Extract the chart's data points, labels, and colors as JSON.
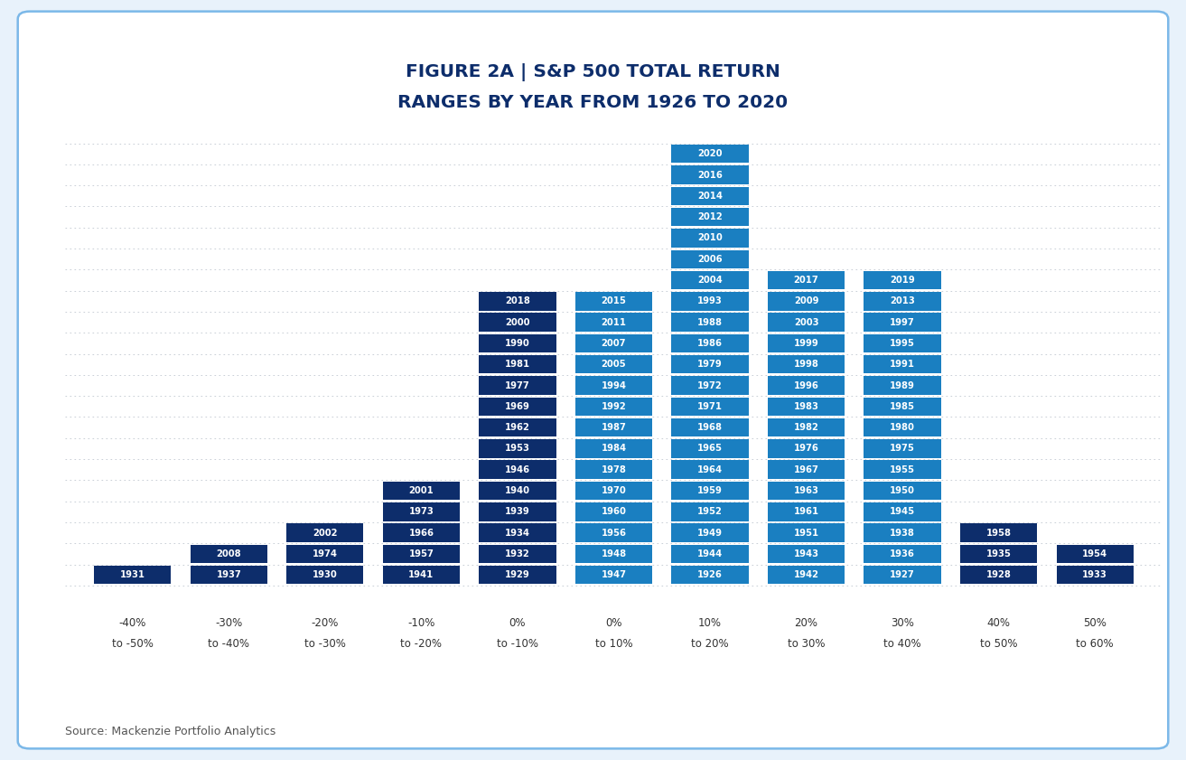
{
  "title_line1": "FIGURE 2A | S&P 500 TOTAL RETURN",
  "title_line2": "RANGES BY YEAR FROM 1926 TO 2020",
  "source": "Source: Mackenzie Portfolio Analytics",
  "columns": [
    {
      "label": "-40%\nto -50%",
      "years": [
        "1931"
      ]
    },
    {
      "label": "-30%\nto -40%",
      "years": [
        "2008",
        "1937"
      ]
    },
    {
      "label": "-20%\nto -30%",
      "years": [
        "2002",
        "1974",
        "1930"
      ]
    },
    {
      "label": "-10%\nto -20%",
      "years": [
        "2001",
        "1973",
        "1966",
        "1957",
        "1941"
      ]
    },
    {
      "label": "0%\nto -10%",
      "years": [
        "2018",
        "2000",
        "1990",
        "1981",
        "1977",
        "1969",
        "1962",
        "1953",
        "1946",
        "1940",
        "1939",
        "1934",
        "1932",
        "1929"
      ]
    },
    {
      "label": "0%\nto 10%",
      "years": [
        "2015",
        "2011",
        "2007",
        "2005",
        "1994",
        "1992",
        "1987",
        "1984",
        "1978",
        "1970",
        "1960",
        "1956",
        "1948",
        "1947"
      ]
    },
    {
      "label": "10%\nto 20%",
      "years": [
        "2020",
        "2016",
        "2014",
        "2012",
        "2010",
        "2006",
        "2004",
        "1993",
        "1988",
        "1986",
        "1979",
        "1972",
        "1971",
        "1968",
        "1965",
        "1964",
        "1959",
        "1952",
        "1949",
        "1944",
        "1926"
      ]
    },
    {
      "label": "20%\nto 30%",
      "years": [
        "2017",
        "2009",
        "2003",
        "1999",
        "1998",
        "1996",
        "1983",
        "1982",
        "1976",
        "1967",
        "1963",
        "1961",
        "1951",
        "1943",
        "1942"
      ]
    },
    {
      "label": "30%\nto 40%",
      "years": [
        "2019",
        "2013",
        "1997",
        "1995",
        "1991",
        "1989",
        "1985",
        "1980",
        "1975",
        "1955",
        "1950",
        "1945",
        "1938",
        "1936",
        "1927"
      ]
    },
    {
      "label": "40%\nto 50%",
      "years": [
        "1958",
        "1935",
        "1928"
      ]
    },
    {
      "label": "50%\nto 60%",
      "years": [
        "1954",
        "1933"
      ]
    }
  ],
  "col_colors": [
    "#0d2d6b",
    "#0d2d6b",
    "#0d2d6b",
    "#0d2d6b",
    "#0d2d6b",
    "#1a7fc1",
    "#1a7fc1",
    "#1a7fc1",
    "#1a7fc1",
    "#0d2d6b",
    "#0d2d6b"
  ],
  "bg_color": "#ffffff",
  "outer_bg_color": "#e8f2fb",
  "border_color": "#7bb8e8",
  "title_color": "#0d2d6b",
  "dotted_color": "#c0c8d0",
  "source_color": "#555555",
  "axis_label_color": "#333333"
}
